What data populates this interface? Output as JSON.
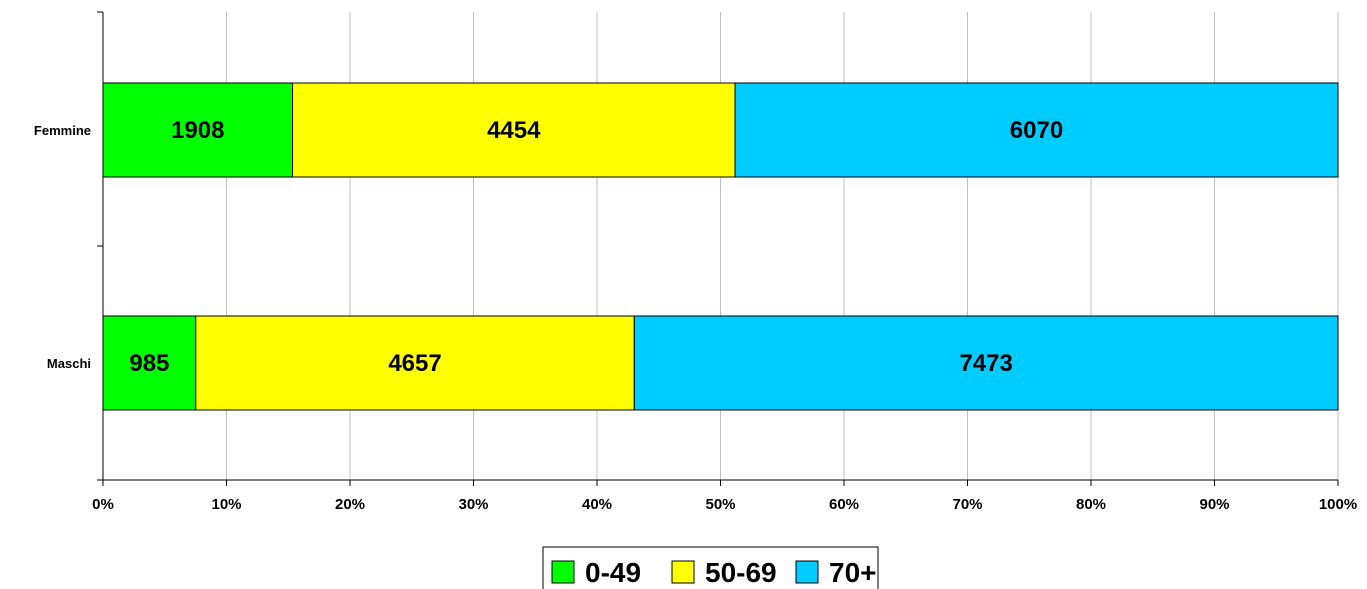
{
  "chart_data": {
    "type": "bar",
    "orientation": "horizontal",
    "stacking": "percent",
    "categories": [
      "Femmine",
      "Maschi"
    ],
    "series": [
      {
        "name": "0-49",
        "color": "#00FF00",
        "values": [
          1908,
          985
        ]
      },
      {
        "name": "50-69",
        "color": "#FFFF00",
        "values": [
          4454,
          4657
        ]
      },
      {
        "name": "70+",
        "color": "#00CCFF",
        "values": [
          6070,
          7473
        ]
      }
    ],
    "x_ticks": [
      "0%",
      "10%",
      "20%",
      "30%",
      "40%",
      "50%",
      "60%",
      "70%",
      "80%",
      "90%",
      "100%"
    ],
    "xlim": [
      0,
      100
    ],
    "grid": "vertical",
    "legend_position": "bottom",
    "title": "",
    "xlabel": "",
    "ylabel": ""
  }
}
